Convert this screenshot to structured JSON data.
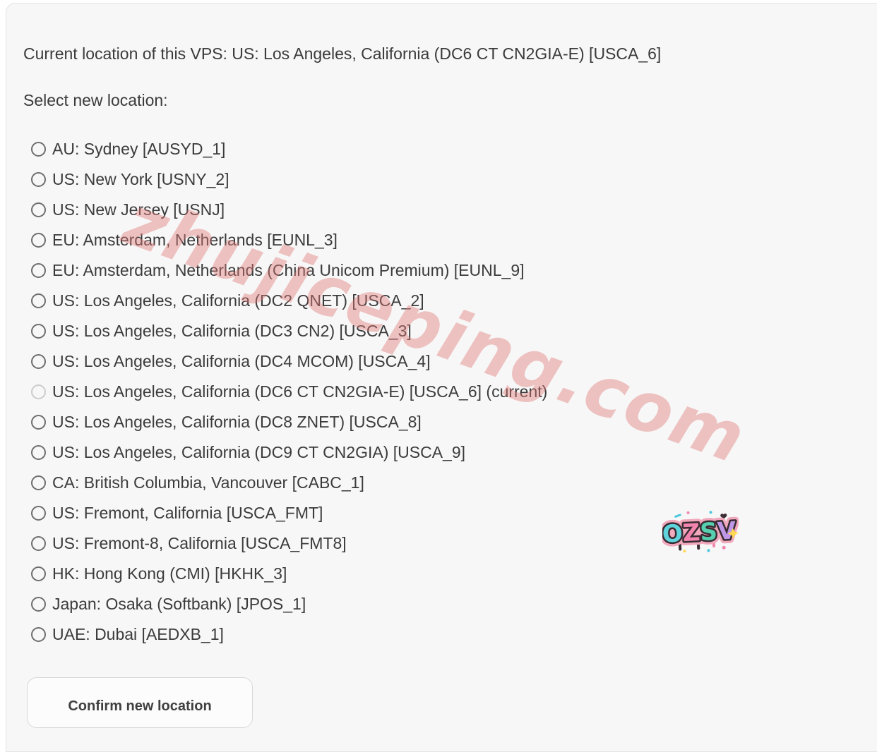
{
  "header": {
    "current_location": "Current location of this VPS: US: Los Angeles, California (DC6 CT CN2GIA-E) [USCA_6]",
    "select_prompt": "Select new location:"
  },
  "locations": [
    {
      "label": "AU: Sydney [AUSYD_1]",
      "disabled": false
    },
    {
      "label": "US: New York [USNY_2]",
      "disabled": false
    },
    {
      "label": "US: New Jersey [USNJ]",
      "disabled": false
    },
    {
      "label": "EU: Amsterdam, Netherlands [EUNL_3]",
      "disabled": false
    },
    {
      "label": "EU: Amsterdam, Netherlands (China Unicom Premium) [EUNL_9]",
      "disabled": false
    },
    {
      "label": "US: Los Angeles, California (DC2 QNET) [USCA_2]",
      "disabled": false
    },
    {
      "label": "US: Los Angeles, California (DC3 CN2) [USCA_3]",
      "disabled": false
    },
    {
      "label": "US: Los Angeles, California (DC4 MCOM) [USCA_4]",
      "disabled": false
    },
    {
      "label": "US: Los Angeles, California (DC6 CT CN2GIA-E) [USCA_6] (current)",
      "disabled": true
    },
    {
      "label": "US: Los Angeles, California (DC8 ZNET) [USCA_8]",
      "disabled": false
    },
    {
      "label": "US: Los Angeles, California (DC9 CT CN2GIA) [USCA_9]",
      "disabled": false
    },
    {
      "label": "CA: British Columbia, Vancouver [CABC_1]",
      "disabled": false
    },
    {
      "label": "US: Fremont, California [USCA_FMT]",
      "disabled": false
    },
    {
      "label": "US: Fremont-8, California [USCA_FMT8]",
      "disabled": false
    },
    {
      "label": "HK: Hong Kong (CMI) [HKHK_3]",
      "disabled": false
    },
    {
      "label": "Japan: Osaka (Softbank) [JPOS_1]",
      "disabled": false
    },
    {
      "label": "UAE: Dubai [AEDXB_1]",
      "disabled": false
    }
  ],
  "confirm_button": {
    "label": "Confirm new location"
  },
  "watermark": {
    "text": "zhujiceping.com",
    "color": "#e17674"
  },
  "sticker": {
    "text": "OZSV",
    "letters": [
      {
        "char": "O",
        "fill": "#5fd4dc"
      },
      {
        "char": "Z",
        "fill": "#f285ae"
      },
      {
        "char": "S",
        "fill": "#57d0b0"
      },
      {
        "char": "V",
        "fill": "#bf97e8"
      }
    ]
  },
  "colors": {
    "panel_background": "#f7f7f7",
    "text": "#3b3b3b",
    "radio_border": "#6e6e6e",
    "radio_disabled_border": "#cccccc",
    "button_border": "#d8d8d8"
  }
}
